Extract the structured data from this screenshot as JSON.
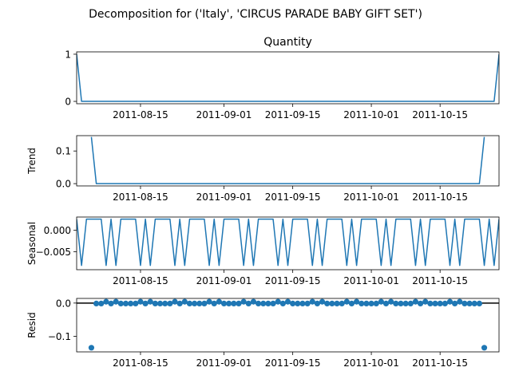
{
  "title": "Decomposition for ('Italy', 'CIRCUS PARADE BABY GIFT SET')",
  "colors": {
    "line": "#1f77b4",
    "axis": "#000000",
    "zero": "#000000"
  },
  "chart_data": [
    {
      "type": "line",
      "title": "Quantity",
      "ylabel": "",
      "xlim": [
        "2011-08-02",
        "2011-10-27"
      ],
      "ylim": [
        -0.05,
        1.05
      ],
      "yticks": [
        {
          "v": 0,
          "label": "0"
        },
        {
          "v": 1,
          "label": "1"
        }
      ],
      "series": [
        {
          "x": [
            "2011-08-02",
            "2011-08-03",
            "2011-10-26",
            "2011-10-27"
          ],
          "values": [
            1,
            0,
            0,
            1
          ]
        }
      ]
    },
    {
      "type": "line",
      "title": "",
      "ylabel": "Trend",
      "xlim": [
        "2011-08-02",
        "2011-10-27"
      ],
      "ylim": [
        -0.007,
        0.147
      ],
      "yticks": [
        {
          "v": 0,
          "label": "0.0"
        },
        {
          "v": 0.1,
          "label": "0.1"
        }
      ],
      "series": [
        {
          "x": [
            "2011-08-05",
            "2011-08-06",
            "2011-10-23",
            "2011-10-24"
          ],
          "values": [
            0.143,
            0,
            0,
            0.143
          ]
        }
      ]
    },
    {
      "type": "line",
      "title": "",
      "ylabel": "Seasonal",
      "xlim": [
        "2011-08-02",
        "2011-10-27"
      ],
      "ylim": [
        -0.0092,
        0.0031
      ],
      "yticks": [
        {
          "v": 0,
          "label": "0.000"
        },
        {
          "v": -0.005,
          "label": "−0.005"
        }
      ],
      "weekly_pattern": [
        0.0026,
        -0.0082,
        0.0026,
        0.0026,
        0.0026,
        0.0026,
        -0.0082
      ],
      "pattern_start": "2011-08-02",
      "series": [
        {
          "x": [],
          "values": []
        }
      ]
    },
    {
      "type": "scatter",
      "title": "",
      "ylabel": "Resid",
      "xlim": [
        "2011-08-02",
        "2011-10-27"
      ],
      "ylim": [
        -0.147,
        0.014
      ],
      "yticks": [
        {
          "v": 0,
          "label": "0.0"
        },
        {
          "v": -0.1,
          "label": "−0.1"
        }
      ],
      "baseline": 0,
      "outliers": [
        {
          "x": "2011-08-05",
          "y": -0.1345
        },
        {
          "x": "2011-10-24",
          "y": -0.1345
        }
      ],
      "weekly_pattern": [
        -0.0014,
        -0.0014,
        0.0041,
        -0.0014,
        0.0041,
        -0.0014,
        -0.0014
      ],
      "pattern_start": "2011-08-06",
      "pattern_end": "2011-10-23",
      "series": [
        {
          "x": [],
          "values": []
        }
      ]
    }
  ],
  "xticks": [
    "2011-08-15",
    "2011-09-01",
    "2011-09-15",
    "2011-10-01",
    "2011-10-15"
  ]
}
